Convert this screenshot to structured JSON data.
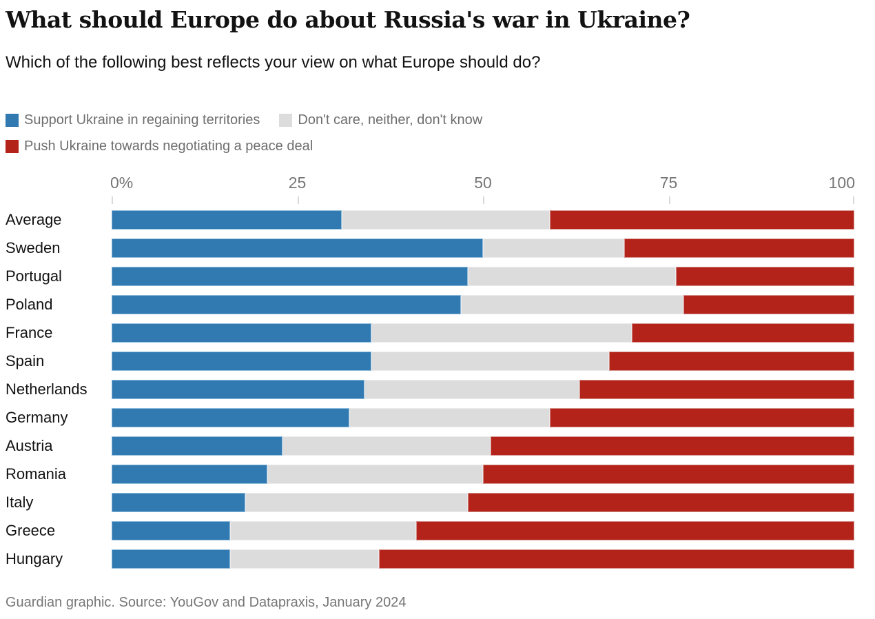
{
  "page": {
    "title": "What should Europe do about Russia's war in Ukraine?",
    "subtitle": "Which of the following best reflects your view on what Europe should do?",
    "footer": "Guardian graphic. Source: YouGov and Datapraxis, January 2024"
  },
  "colors": {
    "support_blue": "#3179b1",
    "support_blue_edge": "#8fbcdb",
    "neutral_gray": "#dcdcdc",
    "neutral_gray_edge": "#ececec",
    "peace_red": "#b3231a",
    "peace_red_edge": "#d4938e",
    "title_text": "#121212",
    "legend_text": "#6e6e6e",
    "axis_text": "#767676",
    "tick_line": "#d9d9d9",
    "footer_text": "#767676"
  },
  "chart_data": {
    "type": "bar",
    "variant": "horizontal-stacked",
    "title": "What should Europe do about Russia's war in Ukraine?",
    "subtitle": "Which of the following best reflects your view on what Europe should do?",
    "source": "Guardian graphic. Source: YouGov and Datapraxis, January 2024",
    "xlim": [
      0,
      100
    ],
    "grid": false,
    "legend_position": "top-left",
    "x_ticks": [
      {
        "value": 0,
        "label": "0%"
      },
      {
        "value": 25,
        "label": "25"
      },
      {
        "value": 50,
        "label": "50"
      },
      {
        "value": 75,
        "label": "75"
      },
      {
        "value": 100,
        "label": "100"
      }
    ],
    "categories": [
      "Average",
      "Sweden",
      "Portugal",
      "Poland",
      "France",
      "Spain",
      "Netherlands",
      "Germany",
      "Austria",
      "Romania",
      "Italy",
      "Greece",
      "Hungary"
    ],
    "series": [
      {
        "name": "Support Ukraine in regaining territories",
        "key": "support",
        "color": "#3179b1",
        "values": [
          31,
          50,
          48,
          47,
          35,
          35,
          34,
          32,
          23,
          21,
          18,
          16,
          16
        ]
      },
      {
        "name": "Don't care, neither, don't know",
        "key": "neutral",
        "color": "#dcdcdc",
        "values": [
          28,
          19,
          28,
          30,
          35,
          32,
          29,
          27,
          28,
          29,
          30,
          25,
          20
        ]
      },
      {
        "name": "Push Ukraine towards negotiating a peace deal",
        "key": "peace",
        "color": "#b3231a",
        "values": [
          41,
          31,
          24,
          23,
          30,
          33,
          37,
          41,
          49,
          50,
          52,
          59,
          64
        ]
      }
    ],
    "legend_rows": [
      [
        0,
        1
      ],
      [
        2
      ]
    ]
  }
}
